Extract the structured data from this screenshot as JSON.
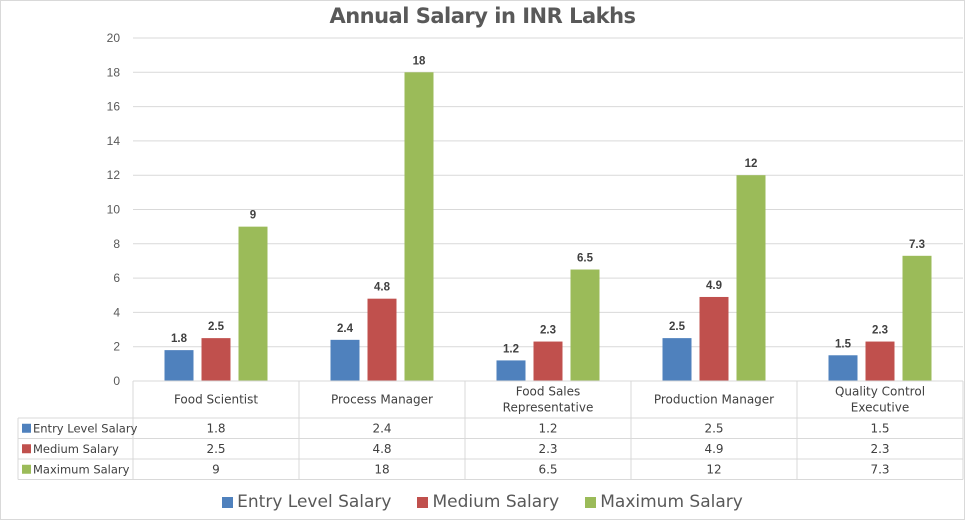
{
  "chart_data": {
    "type": "bar",
    "title": "Annual Salary in INR Lakhs",
    "xlabel": "",
    "ylabel": "",
    "ylim": [
      0,
      20
    ],
    "yticks": [
      0,
      2,
      4,
      6,
      8,
      10,
      12,
      14,
      16,
      18,
      20
    ],
    "grid": true,
    "legend_position": "bottom",
    "categories": [
      [
        "Food Scientist"
      ],
      [
        "Process Manager"
      ],
      [
        "Food Sales",
        "Representative"
      ],
      [
        "Production Manager"
      ],
      [
        "Quality Control",
        "Executive"
      ]
    ],
    "series": [
      {
        "name": "Entry Level Salary",
        "color": "#4f81bd",
        "values": [
          1.8,
          2.4,
          1.2,
          2.5,
          1.5
        ],
        "labels": [
          "1.8",
          "2.4",
          "1.2",
          "2.5",
          "1.5"
        ]
      },
      {
        "name": "Medium Salary",
        "color": "#c0504d",
        "values": [
          2.5,
          4.8,
          2.3,
          4.9,
          2.3
        ],
        "labels": [
          "2.5",
          "4.8",
          "2.3",
          "4.9",
          "2.3"
        ]
      },
      {
        "name": "Maximum Salary",
        "color": "#9bbb59",
        "values": [
          9,
          18,
          6.5,
          12,
          7.3
        ],
        "labels": [
          "9",
          "18",
          "6.5",
          "12",
          "7.3"
        ]
      }
    ],
    "data_table": true
  }
}
